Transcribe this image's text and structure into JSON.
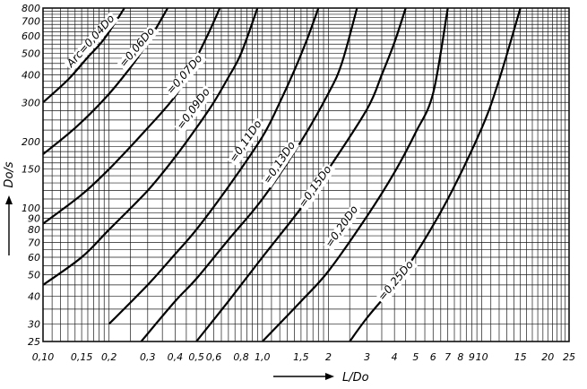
{
  "chart_data": {
    "type": "line",
    "xscale": "log",
    "yscale": "log",
    "xlim": [
      0.1,
      25
    ],
    "ylim": [
      25,
      800
    ],
    "grid": true,
    "xlabel": "L/Do",
    "ylabel": "Do/s",
    "x_ticks": [
      {
        "v": 0.1,
        "label": "0,10"
      },
      {
        "v": 0.15,
        "label": "0,15"
      },
      {
        "v": 0.2,
        "label": "0,2"
      },
      {
        "v": 0.3,
        "label": "0,3"
      },
      {
        "v": 0.4,
        "label": "0,4"
      },
      {
        "v": 0.5,
        "label": "0,5"
      },
      {
        "v": 0.6,
        "label": "0,6"
      },
      {
        "v": 0.8,
        "label": "0,8"
      },
      {
        "v": 1.0,
        "label": "1,0"
      },
      {
        "v": 1.5,
        "label": "1,5"
      },
      {
        "v": 2,
        "label": "2"
      },
      {
        "v": 3,
        "label": "3"
      },
      {
        "v": 4,
        "label": "4"
      },
      {
        "v": 5,
        "label": "5"
      },
      {
        "v": 6,
        "label": "6"
      },
      {
        "v": 7,
        "label": "7"
      },
      {
        "v": 8,
        "label": "8"
      },
      {
        "v": 9,
        "label": "9"
      },
      {
        "v": 10,
        "label": "10"
      },
      {
        "v": 15,
        "label": "15"
      },
      {
        "v": 20,
        "label": "20"
      },
      {
        "v": 25,
        "label": "25"
      }
    ],
    "y_ticks": [
      {
        "v": 25,
        "label": "25"
      },
      {
        "v": 30,
        "label": "30"
      },
      {
        "v": 40,
        "label": "40"
      },
      {
        "v": 50,
        "label": "50"
      },
      {
        "v": 60,
        "label": "60"
      },
      {
        "v": 70,
        "label": "70"
      },
      {
        "v": 80,
        "label": "80"
      },
      {
        "v": 90,
        "label": "90"
      },
      {
        "v": 100,
        "label": "100"
      },
      {
        "v": 150,
        "label": "150"
      },
      {
        "v": 200,
        "label": "200"
      },
      {
        "v": 300,
        "label": "300"
      },
      {
        "v": 400,
        "label": "400"
      },
      {
        "v": 500,
        "label": "500"
      },
      {
        "v": 600,
        "label": "600"
      },
      {
        "v": 700,
        "label": "700"
      },
      {
        "v": 800,
        "label": "800"
      }
    ],
    "series": [
      {
        "name": "Arc=0,04Do",
        "label_at": {
          "x": 0.135,
          "y": 430
        },
        "points": [
          {
            "x": 0.1,
            "y": 300
          },
          {
            "x": 0.13,
            "y": 380
          },
          {
            "x": 0.16,
            "y": 480
          },
          {
            "x": 0.19,
            "y": 580
          },
          {
            "x": 0.235,
            "y": 800
          }
        ]
      },
      {
        "name": "=0,06Do",
        "label_at": {
          "x": 0.235,
          "y": 430
        },
        "points": [
          {
            "x": 0.1,
            "y": 175
          },
          {
            "x": 0.14,
            "y": 230
          },
          {
            "x": 0.19,
            "y": 310
          },
          {
            "x": 0.25,
            "y": 430
          },
          {
            "x": 0.3,
            "y": 560
          },
          {
            "x": 0.37,
            "y": 800
          }
        ]
      },
      {
        "name": "=0,07Do",
        "label_at": {
          "x": 0.385,
          "y": 325
        },
        "points": [
          {
            "x": 0.1,
            "y": 85
          },
          {
            "x": 0.15,
            "y": 115
          },
          {
            "x": 0.2,
            "y": 150
          },
          {
            "x": 0.3,
            "y": 230
          },
          {
            "x": 0.4,
            "y": 320
          },
          {
            "x": 0.48,
            "y": 440
          },
          {
            "x": 0.57,
            "y": 620
          },
          {
            "x": 0.64,
            "y": 800
          }
        ]
      },
      {
        "name": "=0,09Do",
        "label_at": {
          "x": 0.43,
          "y": 225
        },
        "points": [
          {
            "x": 0.1,
            "y": 45
          },
          {
            "x": 0.15,
            "y": 60
          },
          {
            "x": 0.2,
            "y": 80
          },
          {
            "x": 0.3,
            "y": 120
          },
          {
            "x": 0.4,
            "y": 170
          },
          {
            "x": 0.5,
            "y": 230
          },
          {
            "x": 0.6,
            "y": 300
          },
          {
            "x": 0.7,
            "y": 390
          },
          {
            "x": 0.8,
            "y": 500
          },
          {
            "x": 0.95,
            "y": 800
          }
        ]
      },
      {
        "name": "=0,11Do",
        "label_at": {
          "x": 0.75,
          "y": 160
        },
        "points": [
          {
            "x": 0.2,
            "y": 30
          },
          {
            "x": 0.3,
            "y": 45
          },
          {
            "x": 0.4,
            "y": 62
          },
          {
            "x": 0.5,
            "y": 80
          },
          {
            "x": 0.7,
            "y": 125
          },
          {
            "x": 1.0,
            "y": 210
          },
          {
            "x": 1.2,
            "y": 300
          },
          {
            "x": 1.4,
            "y": 420
          },
          {
            "x": 1.6,
            "y": 580
          },
          {
            "x": 1.8,
            "y": 800
          }
        ]
      },
      {
        "name": "=0,13Do",
        "label_at": {
          "x": 1.07,
          "y": 128
        },
        "points": [
          {
            "x": 0.28,
            "y": 25
          },
          {
            "x": 0.4,
            "y": 38
          },
          {
            "x": 0.5,
            "y": 48
          },
          {
            "x": 0.7,
            "y": 72
          },
          {
            "x": 1.0,
            "y": 110
          },
          {
            "x": 1.5,
            "y": 200
          },
          {
            "x": 2.0,
            "y": 330
          },
          {
            "x": 2.3,
            "y": 450
          },
          {
            "x": 2.7,
            "y": 800
          }
        ]
      },
      {
        "name": "=0,15Do",
        "label_at": {
          "x": 1.55,
          "y": 100
        },
        "points": [
          {
            "x": 0.5,
            "y": 25
          },
          {
            "x": 0.7,
            "y": 38
          },
          {
            "x": 1.0,
            "y": 60
          },
          {
            "x": 1.5,
            "y": 100
          },
          {
            "x": 2.0,
            "y": 150
          },
          {
            "x": 3.0,
            "y": 280
          },
          {
            "x": 3.5,
            "y": 400
          },
          {
            "x": 4.0,
            "y": 560
          },
          {
            "x": 4.5,
            "y": 800
          }
        ]
      },
      {
        "name": "=0,20Do",
        "label_at": {
          "x": 2.05,
          "y": 66
        },
        "points": [
          {
            "x": 1.0,
            "y": 25
          },
          {
            "x": 1.5,
            "y": 38
          },
          {
            "x": 2.0,
            "y": 52
          },
          {
            "x": 3.0,
            "y": 92
          },
          {
            "x": 4.0,
            "y": 145
          },
          {
            "x": 5.0,
            "y": 220
          },
          {
            "x": 6.0,
            "y": 330
          },
          {
            "x": 7.0,
            "y": 800
          }
        ]
      },
      {
        "name": "=0,25Do",
        "label_at": {
          "x": 3.55,
          "y": 38
        },
        "points": [
          {
            "x": 2.5,
            "y": 25
          },
          {
            "x": 3.0,
            "y": 32
          },
          {
            "x": 4.0,
            "y": 45
          },
          {
            "x": 5.0,
            "y": 62
          },
          {
            "x": 7.0,
            "y": 110
          },
          {
            "x": 10.0,
            "y": 230
          },
          {
            "x": 12.0,
            "y": 380
          },
          {
            "x": 15.0,
            "y": 800
          }
        ]
      }
    ]
  }
}
